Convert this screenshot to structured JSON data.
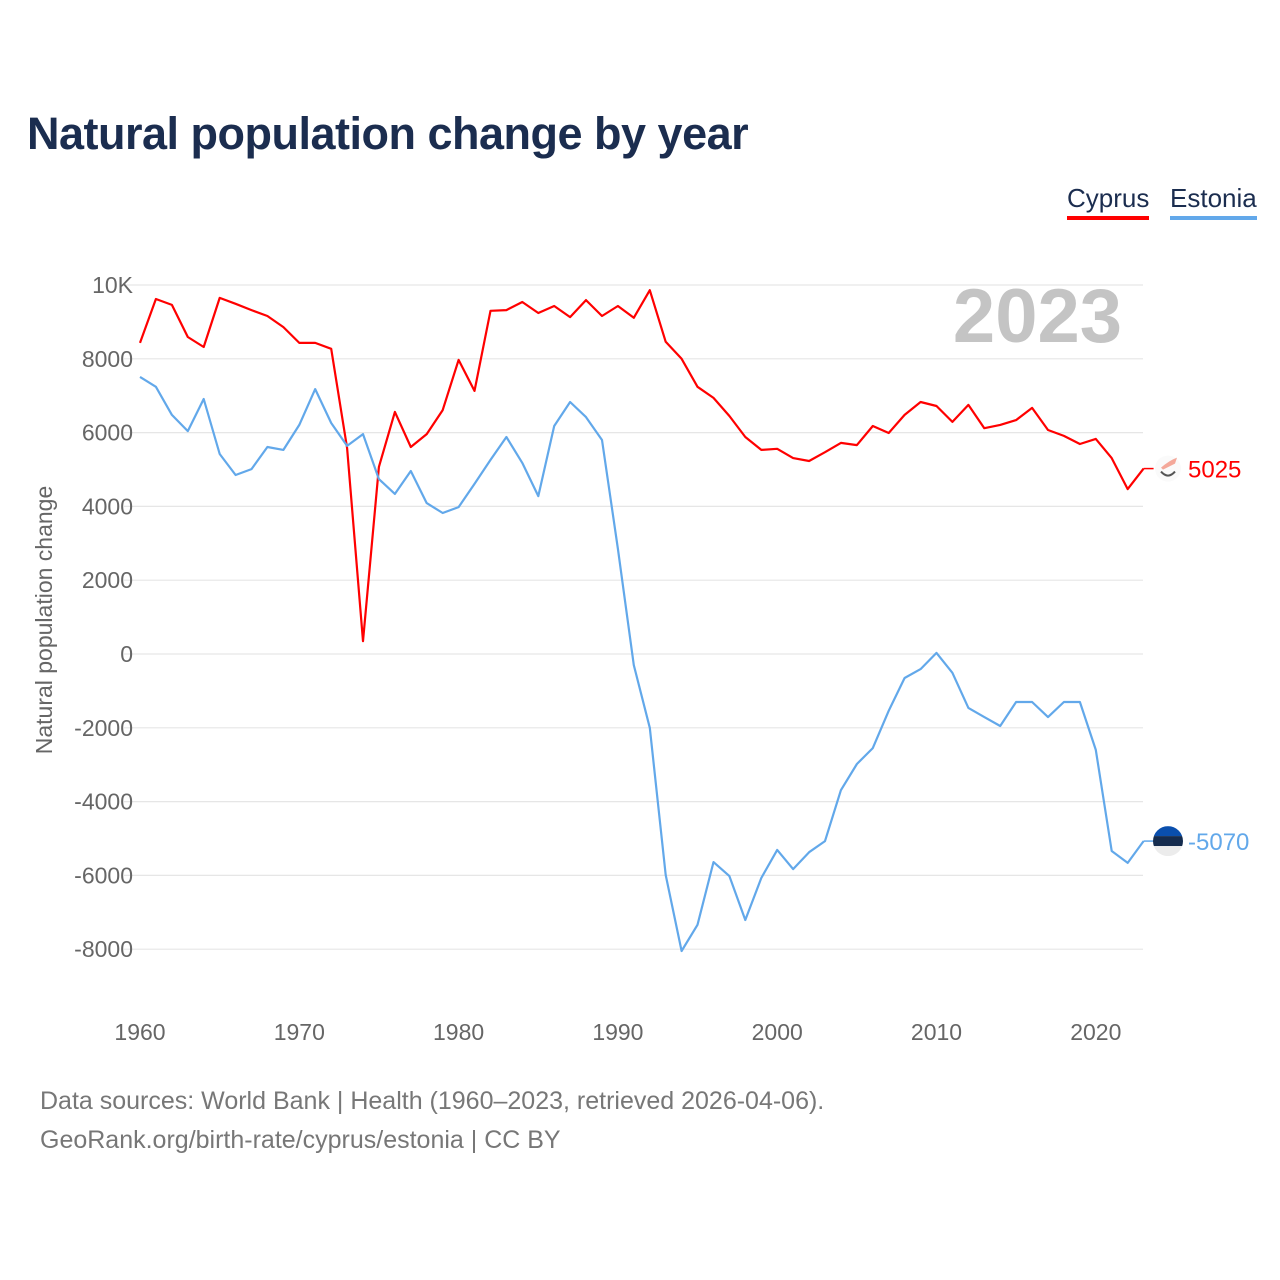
{
  "title": "Natural population change by year",
  "footer": {
    "line1": "Data sources: World Bank | Health (1960–2023, retrieved 2026-04-06).",
    "line2": "GeoRank.org/birth-rate/cyprus/estonia | CC BY"
  },
  "chart_data": {
    "type": "line",
    "title": "Natural population change by year",
    "xlabel": "",
    "ylabel": "Natural population change",
    "year_label": "2023",
    "xlim": [
      1960,
      2023
    ],
    "ylim": [
      -9000,
      10000
    ],
    "x_ticks": [
      "1960",
      "1970",
      "1980",
      "1990",
      "2000",
      "2010",
      "2020"
    ],
    "y_ticks": [
      {
        "v": 10000,
        "label": "10K"
      },
      {
        "v": 8000,
        "label": "8000"
      },
      {
        "v": 6000,
        "label": "6000"
      },
      {
        "v": 4000,
        "label": "4000"
      },
      {
        "v": 2000,
        "label": "2000"
      },
      {
        "v": 0,
        "label": "0"
      },
      {
        "v": -2000,
        "label": "-2000"
      },
      {
        "v": -4000,
        "label": "-4000"
      },
      {
        "v": -6000,
        "label": "-6000"
      },
      {
        "v": -8000,
        "label": "-8000"
      }
    ],
    "grid": true,
    "legend_position": "top-right",
    "x_start": 1960,
    "series": [
      {
        "name": "Cyprus",
        "color": "#ff0000",
        "end_label": "5025",
        "icon": "cyprus-flag-icon",
        "values": [
          8430,
          9620,
          9460,
          8590,
          8320,
          9650,
          9490,
          9320,
          9160,
          8860,
          8430,
          8430,
          8270,
          5580,
          350,
          5070,
          6560,
          5610,
          5960,
          6610,
          7970,
          7130,
          9300,
          9320,
          9540,
          9240,
          9430,
          9130,
          9590,
          9160,
          9430,
          9110,
          9860,
          8460,
          8000,
          7240,
          6940,
          6450,
          5880,
          5530,
          5560,
          5310,
          5230,
          5470,
          5720,
          5660,
          6180,
          5990,
          6480,
          6830,
          6720,
          6290,
          6750,
          6120,
          6210,
          6340,
          6670,
          6070,
          5910,
          5690,
          5830,
          5310,
          4470,
          5025
        ]
      },
      {
        "name": "Estonia",
        "color": "#62a8ea",
        "end_label": "-5070",
        "icon": "estonia-flag-icon",
        "values": [
          7510,
          7240,
          6480,
          6040,
          6910,
          5420,
          4850,
          5010,
          5610,
          5530,
          6210,
          7180,
          6260,
          5640,
          5960,
          4740,
          4340,
          4960,
          4090,
          3820,
          3980,
          4610,
          5260,
          5880,
          5180,
          4280,
          6180,
          6830,
          6420,
          5800,
          2850,
          -300,
          -2000,
          -5990,
          -8050,
          -7340,
          -5640,
          -6020,
          -7210,
          -6070,
          -5310,
          -5830,
          -5370,
          -5070,
          -3690,
          -2980,
          -2550,
          -1540,
          -650,
          -410,
          30,
          -510,
          -1460,
          -1710,
          -1950,
          -1300,
          -1300,
          -1710,
          -1300,
          -1300,
          -2600,
          -5340,
          -5660,
          -5070
        ]
      }
    ]
  }
}
